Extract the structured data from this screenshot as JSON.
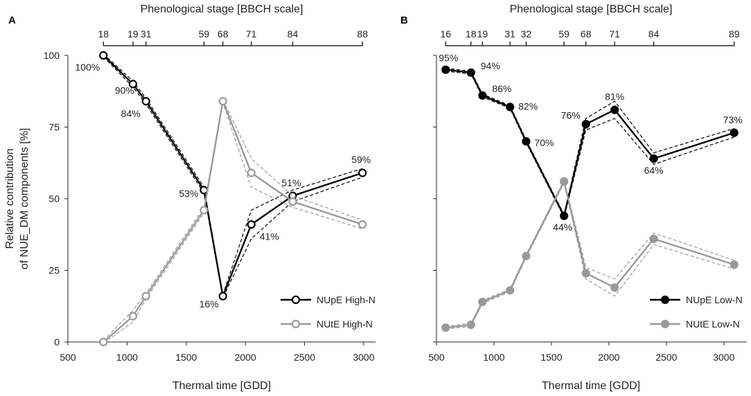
{
  "chart_data": [
    {
      "panel_label": "A",
      "type": "line",
      "top_axis_title": "Phenological stage  [BBCH scale]",
      "top_ticks": [
        {
          "x": 800,
          "label": "18"
        },
        {
          "x": 1050,
          "label": "19"
        },
        {
          "x": 1160,
          "label": "31"
        },
        {
          "x": 1650,
          "label": "59"
        },
        {
          "x": 1810,
          "label": "68"
        },
        {
          "x": 2050,
          "label": "71"
        },
        {
          "x": 2400,
          "label": "84"
        },
        {
          "x": 2990,
          "label": "88"
        }
      ],
      "xlabel": "Thermal time [GDD]",
      "ylabel_line1": "Relative contribution",
      "ylabel_line2": "of NUE_DM components [%]",
      "xlim": [
        500,
        3100
      ],
      "ylim": [
        0,
        100
      ],
      "xticks": [
        500,
        1000,
        1500,
        2000,
        2500,
        3000
      ],
      "xtick_labels": [
        "500",
        "1000",
        "1500",
        "2000",
        "2500",
        "3000"
      ],
      "yticks": [
        0,
        25,
        50,
        75,
        100
      ],
      "ytick_labels": [
        "0",
        "25",
        "50",
        "75",
        "100"
      ],
      "series": [
        {
          "name": "NUpE High-N",
          "color": "#000000",
          "marker": "open",
          "x": [
            800,
            1050,
            1160,
            1650,
            1810,
            2050,
            2400,
            2990
          ],
          "values": [
            100,
            90,
            84,
            53,
            16,
            41,
            51,
            59
          ],
          "ci_upper": [
            100.5,
            91,
            85,
            54,
            16.5,
            46,
            53,
            60.5
          ],
          "ci_lower": [
            99.5,
            89,
            83,
            52,
            15.5,
            36,
            49,
            57.5
          ]
        },
        {
          "name": "NUtE High-N",
          "color": "#999999",
          "marker": "open",
          "x": [
            800,
            1050,
            1160,
            1650,
            1810,
            2050,
            2400,
            2990
          ],
          "values": [
            0,
            9,
            16,
            46,
            84,
            59,
            49,
            41
          ],
          "ci_upper": [
            0.5,
            11,
            17,
            47,
            84.5,
            64,
            51,
            42.5
          ],
          "ci_lower": [
            -0.5,
            7,
            15,
            45,
            83.5,
            54,
            47,
            39.5
          ]
        }
      ],
      "annotations": [
        "100%",
        "90%",
        "84%",
        "53%",
        "16%",
        "41%",
        "51%",
        "59%"
      ]
    },
    {
      "panel_label": "B",
      "type": "line",
      "top_axis_title": "Phenological stage  [BBCH scale]",
      "top_ticks": [
        {
          "x": 580,
          "label": "16"
        },
        {
          "x": 800,
          "label": "18"
        },
        {
          "x": 900,
          "label": "19"
        },
        {
          "x": 1140,
          "label": "31"
        },
        {
          "x": 1280,
          "label": "32"
        },
        {
          "x": 1610,
          "label": "59"
        },
        {
          "x": 1800,
          "label": "68"
        },
        {
          "x": 2050,
          "label": "71"
        },
        {
          "x": 2390,
          "label": "84"
        },
        {
          "x": 3090,
          "label": "89"
        }
      ],
      "xlabel": "Thermal time [GDD]",
      "xlim": [
        500,
        3200
      ],
      "ylim": [
        0,
        100
      ],
      "xticks": [
        500,
        1000,
        1500,
        2000,
        2500,
        3000
      ],
      "xtick_labels": [
        "500",
        "1000",
        "1500",
        "2000",
        "2500",
        "3000"
      ],
      "yticks": [
        0,
        25,
        50,
        75,
        100
      ],
      "series": [
        {
          "name": "NUpE Low-N",
          "color": "#000000",
          "marker": "filled",
          "x": [
            580,
            800,
            900,
            1140,
            1280,
            1610,
            1800,
            2050,
            2390,
            3090
          ],
          "values": [
            95,
            94,
            86,
            82,
            70,
            44,
            76,
            81,
            64,
            73
          ],
          "ci_upper": [
            95.5,
            94.5,
            86.5,
            82.5,
            70.5,
            44.5,
            78,
            84,
            66,
            74.5
          ],
          "ci_lower": [
            94.5,
            93.5,
            85.5,
            81.5,
            69.5,
            43.5,
            74,
            78,
            62,
            71.5
          ]
        },
        {
          "name": "NUtE Low-N",
          "color": "#999999",
          "marker": "filled",
          "x": [
            580,
            800,
            900,
            1140,
            1280,
            1610,
            1800,
            2050,
            2390,
            3090
          ],
          "values": [
            5,
            6,
            14,
            18,
            30,
            56,
            24,
            19,
            36,
            27
          ],
          "ci_upper": [
            5.5,
            6.5,
            14.5,
            18.5,
            30.5,
            56.5,
            26,
            22,
            38,
            28.5
          ],
          "ci_lower": [
            4.5,
            5.5,
            13.5,
            17.5,
            29.5,
            55.5,
            22,
            16,
            34,
            25.5
          ]
        }
      ],
      "annotations": [
        "95%",
        "94%",
        "86%",
        "82%",
        "70%",
        "44%",
        "76%",
        "81%",
        "64%",
        "73%"
      ]
    }
  ]
}
